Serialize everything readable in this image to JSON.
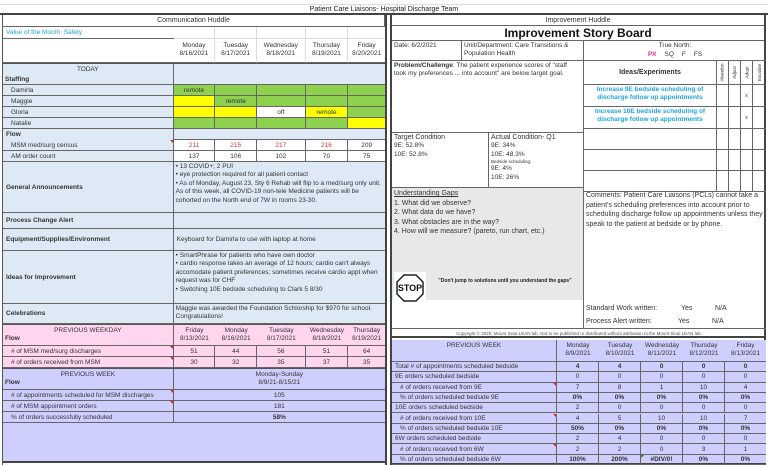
{
  "title": "Patient Care Liaisons- Hospital Discharge Team",
  "communication": {
    "header": "Communication Huddle",
    "value_of_month": "Value of the Month: Safety",
    "days": [
      {
        "day": "Monday",
        "date": "8/16/2021"
      },
      {
        "day": "Tuesday",
        "date": "8/17/2021"
      },
      {
        "day": "Wednesday",
        "date": "8/18/2021"
      },
      {
        "day": "Thursday",
        "date": "8/19/2021"
      },
      {
        "day": "Friday",
        "date": "8/20/2021"
      }
    ],
    "today_label": "TODAY",
    "staffing_label": "Staffing",
    "staff": [
      {
        "name": "Damirla",
        "cells": [
          "remote",
          "",
          "",
          "",
          ""
        ],
        "colors": [
          "green",
          "green",
          "green",
          "green",
          "green"
        ]
      },
      {
        "name": "Maggie",
        "cells": [
          "",
          "remote",
          "",
          "",
          ""
        ],
        "colors": [
          "yellow",
          "green",
          "green",
          "green",
          "green"
        ]
      },
      {
        "name": "Gloria",
        "cells": [
          "",
          "",
          "off",
          "remote",
          ""
        ],
        "colors": [
          "yellow",
          "yellow",
          "white",
          "yellow",
          "green"
        ]
      },
      {
        "name": "Natalie",
        "cells": [
          "",
          "",
          "",
          "",
          ""
        ],
        "colors": [
          "green",
          "green",
          "green",
          "green",
          "yellow"
        ]
      }
    ],
    "flow_label": "Flow",
    "flow": [
      {
        "label": "MSM med/surg census",
        "values": [
          "211",
          "215",
          "217",
          "216",
          "209"
        ],
        "red": [
          true,
          true,
          true,
          true,
          false
        ]
      },
      {
        "label": "AM order count",
        "values": [
          "137",
          "106",
          "102",
          "70",
          "75"
        ],
        "red": [
          false,
          false,
          false,
          false,
          false
        ]
      }
    ],
    "general_label": "General Announcements",
    "general": [
      "• 13 COVID+; 2 PUI",
      "• eye protection required for all patient contact",
      "• As of Monday, August 23, Sty 6 Rehab will flip to a med/surg only unit. As of this week, all COVID-19 non-tele Medicine patients will be cohorted on the North end of 7W in rooms 23-30."
    ],
    "process_label": "Process Change Alert",
    "process_text": "",
    "equipment_label": "Equipment/Supplies/Environment",
    "equipment_text": "Keyboard for Damirla to use with laptop at home",
    "ideas_label": "Ideas for Improvement",
    "ideas": [
      "• SmartPhrase for patients who have own doctor",
      "• cardio response takes an average of 12 hours; cardio can't always accomodate patient preferences; sometimes receive cardio appt when request was for CHF",
      "• Switching 10E bedside scheduling to Clark 5 8/30"
    ],
    "celebrations_label": "Celebrations",
    "celebrations_text": "Maggie was awarded the Foundation Schlorship for $970 for school. Congratulations!"
  },
  "prev_weekday": {
    "header": "PREVIOUS WEEKDAY",
    "flow_label": "Flow",
    "days": [
      {
        "day": "Friday",
        "date": "8/13/2021"
      },
      {
        "day": "Monday",
        "date": "8/16/2021"
      },
      {
        "day": "Tuesday",
        "date": "8/17/2021"
      },
      {
        "day": "Wednesday",
        "date": "8/18/2021"
      },
      {
        "day": "Thursday",
        "date": "8/19/2021"
      }
    ],
    "rows": [
      {
        "label": "# of MSM med/surg discharges",
        "values": [
          "51",
          "44",
          "56",
          "51",
          "64"
        ]
      },
      {
        "label": "# of orders received from MSM",
        "values": [
          "30",
          "32",
          "35",
          "37",
          "35"
        ]
      }
    ]
  },
  "prev_week_left": {
    "header": "PREVIOUS WEEK",
    "flow_label": "Flow",
    "range_label": "Monday-Sunday",
    "range": "8/9/21-8/15/21",
    "rows": [
      {
        "label": "# of appointments scheduled for MSM discharges",
        "value": "105"
      },
      {
        "label": "# of MSM appointment orders",
        "value": "181"
      },
      {
        "label": "% of orders successfully scheduled",
        "value": "58%"
      }
    ]
  },
  "story": {
    "huddle_header": "Improvement Huddle",
    "board_title": "Improvement Story Board",
    "date": "Date: 6/2/2021",
    "unit": "Unit/Department: Care Transitions & Population Health",
    "true_north_label": "True North:",
    "true_north": [
      "PX",
      "SQ",
      "F",
      "FS"
    ],
    "true_north_active_color": "#f0309a",
    "problem_label": "Problem/Challenge",
    "problem_text": ": The patient experience scores of \"staff took my preferences ... into account\" are below target goal.",
    "ideas_header": "Ideas/Experiments",
    "status_cols": [
      "Abandon",
      "Adjust",
      "Adopt",
      "Escalate"
    ],
    "experiments": [
      {
        "text": "Increase 9E bedside scheduling of discharge follow up appointments",
        "marks": [
          "",
          "",
          "x",
          ""
        ]
      },
      {
        "text": "Increase 10E bedside scheduling of discharge follow up appointments",
        "marks": [
          "",
          "",
          "x",
          ""
        ]
      },
      {
        "text": "",
        "marks": [
          "",
          "",
          "",
          ""
        ]
      },
      {
        "text": "",
        "marks": [
          "",
          "",
          "",
          ""
        ]
      },
      {
        "text": "",
        "marks": [
          "",
          "",
          "",
          ""
        ]
      }
    ],
    "target_label": "Target Condition",
    "target": [
      "9E: 52.8%",
      "10E: 52.8%"
    ],
    "actual_label": "Actual Condition- Q1",
    "actual": [
      "9E: 34%",
      "10E: 48.3%"
    ],
    "bedside_label": "Bedside scheduling:",
    "bedside": [
      "9E: 4%",
      "10E: 26%"
    ],
    "gaps_label": "Understanding Gaps",
    "gaps": [
      "1. What did we observe?",
      "2. What data do we have?",
      "3. What obstacles are in the way?",
      "4. How will we measure? (pareto, run chart, etc.)"
    ],
    "stop_sign": "STOP",
    "stop_quote": "\"Don't jump to solutions until you understand the gaps\"",
    "comments": "Comments: Patient Care Liaisons (PCLs) cannot take a patient's scheduling preferences into account prior to scheduling discharge follow up appointments unless they speak to the patient at bedside or by phone.",
    "standard_work_label": "Standard Work written:",
    "process_alert_label": "Process Alert written:",
    "yes": "Yes",
    "na": "N/A",
    "copyright": "Copyright © 2020, Mount Sinai LEAN lab. Not to be published or distributed without attribution to the Mount Sinai LEAN lab."
  },
  "prev_week_right": {
    "header": "PREVIOUS WEEK",
    "days": [
      {
        "day": "Monday",
        "date": "8/9/2021"
      },
      {
        "day": "Tuesday",
        "date": "8/10/2021"
      },
      {
        "day": "Wednesday",
        "date": "8/11/2021"
      },
      {
        "day": "Thursday",
        "date": "8/12/2021"
      },
      {
        "day": "Friday",
        "date": "8/13/2021"
      }
    ],
    "rows": [
      {
        "label": "Total # of appointments scheduled bedside",
        "values": [
          "4",
          "4",
          "0",
          "0",
          "0"
        ],
        "bold": true,
        "indent": false
      },
      {
        "label": "9E orders scheduled bedside",
        "values": [
          "0",
          "0",
          "0",
          "0",
          "0"
        ],
        "bold": false,
        "indent": false
      },
      {
        "label": "# of orders received from 9E",
        "values": [
          "7",
          "8",
          "1",
          "10",
          "4"
        ],
        "bold": false,
        "indent": true
      },
      {
        "label": "% of orders scheduled bedside 9E",
        "values": [
          "0%",
          "0%",
          "0%",
          "0%",
          "0%"
        ],
        "bold": true,
        "indent": true
      },
      {
        "label": "10E orders scheduled bedside",
        "values": [
          "2",
          "0",
          "0",
          "0",
          "0"
        ],
        "bold": false,
        "indent": false
      },
      {
        "label": "# of orders received from 10E",
        "values": [
          "4",
          "5",
          "10",
          "10",
          "7"
        ],
        "bold": false,
        "indent": true
      },
      {
        "label": "% of orders scheduled bedside 10E",
        "values": [
          "50%",
          "0%",
          "0%",
          "0%",
          "0%"
        ],
        "bold": true,
        "indent": true
      },
      {
        "label": "6W orders scheduled bedside",
        "values": [
          "2",
          "4",
          "0",
          "0",
          "0"
        ],
        "bold": false,
        "indent": false
      },
      {
        "label": "# of orders received from 6W",
        "values": [
          "2",
          "2",
          "0",
          "3",
          "1"
        ],
        "bold": false,
        "indent": true
      },
      {
        "label": "% of orders scheduled bedside 6W",
        "values": [
          "100%",
          "200%",
          "#DIV/0!",
          "0%",
          "0%"
        ],
        "bold": true,
        "indent": true
      }
    ]
  }
}
